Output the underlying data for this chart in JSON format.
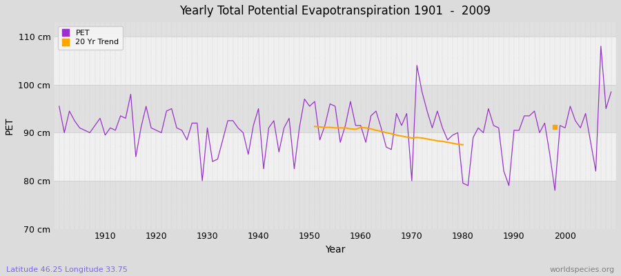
{
  "title": "Yearly Total Potential Evapotranspiration 1901  -  2009",
  "xlabel": "Year",
  "ylabel": "PET",
  "bottom_left_label": "Latitude 46.25 Longitude 33.75",
  "watermark": "worldspecies.org",
  "ylim": [
    70,
    113
  ],
  "xlim": [
    1900,
    2010
  ],
  "yticks": [
    70,
    80,
    90,
    100,
    110
  ],
  "ytick_labels": [
    "70 cm",
    "80 cm",
    "90 cm",
    "100 cm",
    "110 cm"
  ],
  "xticks": [
    1910,
    1920,
    1930,
    1940,
    1950,
    1960,
    1970,
    1980,
    1990,
    2000
  ],
  "pet_color": "#9932CC",
  "trend_color": "#FFA500",
  "fig_bg_color": "#DCDCDC",
  "plot_bg_color": "#E8E8E8",
  "band_light_color": "#F0F0F0",
  "band_dark_color": "#E0E0E0",
  "grid_line_color": "#CCCCCC",
  "years": [
    1901,
    1902,
    1903,
    1904,
    1905,
    1906,
    1907,
    1908,
    1909,
    1910,
    1911,
    1912,
    1913,
    1914,
    1915,
    1916,
    1917,
    1918,
    1919,
    1920,
    1921,
    1922,
    1923,
    1924,
    1925,
    1926,
    1927,
    1928,
    1929,
    1930,
    1931,
    1932,
    1933,
    1934,
    1935,
    1936,
    1937,
    1938,
    1939,
    1940,
    1941,
    1942,
    1943,
    1944,
    1945,
    1946,
    1947,
    1948,
    1949,
    1950,
    1951,
    1952,
    1953,
    1954,
    1955,
    1956,
    1957,
    1958,
    1959,
    1960,
    1961,
    1962,
    1963,
    1964,
    1965,
    1966,
    1967,
    1968,
    1969,
    1970,
    1971,
    1972,
    1973,
    1974,
    1975,
    1976,
    1977,
    1978,
    1979,
    1980,
    1981,
    1982,
    1983,
    1984,
    1985,
    1986,
    1987,
    1988,
    1989,
    1990,
    1991,
    1992,
    1993,
    1994,
    1995,
    1996,
    1997,
    1998,
    1999,
    2000,
    2001,
    2002,
    2003,
    2004,
    2005,
    2006,
    2007,
    2008,
    2009
  ],
  "pet_values": [
    95.5,
    90.0,
    94.5,
    92.5,
    91.0,
    90.5,
    90.0,
    91.5,
    93.0,
    89.5,
    91.0,
    90.5,
    93.5,
    93.0,
    98.0,
    85.0,
    91.0,
    95.5,
    91.0,
    90.5,
    90.0,
    94.5,
    95.0,
    91.0,
    90.5,
    88.5,
    92.0,
    92.0,
    80.0,
    91.0,
    84.0,
    84.5,
    88.5,
    92.5,
    92.5,
    91.0,
    90.0,
    85.5,
    91.5,
    95.0,
    82.5,
    91.0,
    92.5,
    86.0,
    91.0,
    93.0,
    82.5,
    91.0,
    97.0,
    95.5,
    96.5,
    88.5,
    91.5,
    96.0,
    95.5,
    88.0,
    91.5,
    96.5,
    91.5,
    91.5,
    88.0,
    93.5,
    94.5,
    91.0,
    87.0,
    86.5,
    94.0,
    91.5,
    94.0,
    80.0,
    104.0,
    98.5,
    94.5,
    91.0,
    94.5,
    91.0,
    88.5,
    89.5,
    90.0,
    79.5,
    79.0,
    89.0,
    91.0,
    90.0,
    95.0,
    91.5,
    91.0,
    82.0,
    79.0,
    90.5,
    90.5,
    93.5,
    93.5,
    94.5,
    90.0,
    92.0,
    85.5,
    78.0,
    91.5,
    91.0,
    95.5,
    92.5,
    91.0,
    94.0,
    88.0,
    82.0,
    108.0,
    95.0,
    98.5
  ],
  "trend_years": [
    1951,
    1952,
    1953,
    1954,
    1955,
    1956,
    1957,
    1958,
    1959,
    1960,
    1961,
    1962,
    1963,
    1964,
    1965,
    1966,
    1967,
    1968,
    1969,
    1970,
    1971,
    1972,
    1973,
    1974,
    1975,
    1976,
    1977,
    1978,
    1979,
    1980
  ],
  "trend_values": [
    91.3,
    91.2,
    91.1,
    91.1,
    91.0,
    91.0,
    91.0,
    90.8,
    90.7,
    91.1,
    91.0,
    90.8,
    90.5,
    90.3,
    90.0,
    89.8,
    89.5,
    89.3,
    89.1,
    88.9,
    89.0,
    88.9,
    88.7,
    88.5,
    88.3,
    88.2,
    88.0,
    87.8,
    87.6,
    87.5
  ],
  "trend_dot_year": 1998,
  "trend_dot_value": 91.2
}
